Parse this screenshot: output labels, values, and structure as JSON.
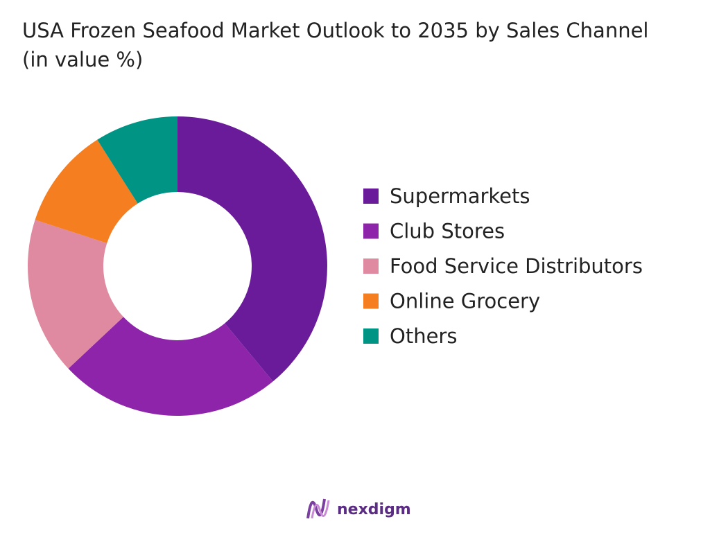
{
  "chart_data": {
    "type": "donut",
    "title": "USA Frozen Seafood Market Outlook to 2035 by Sales Channel",
    "subtitle": "(in value %)",
    "categories": [
      "Supermarkets",
      "Club Stores",
      "Food Service Distributors",
      "Online Grocery",
      "Others"
    ],
    "values": [
      39,
      24,
      17,
      11,
      9
    ],
    "colors": [
      "#6a1b9a",
      "#8e24aa",
      "#df8aa0",
      "#f47e20",
      "#009485"
    ],
    "legend": "right"
  },
  "branding": "nexdigm"
}
